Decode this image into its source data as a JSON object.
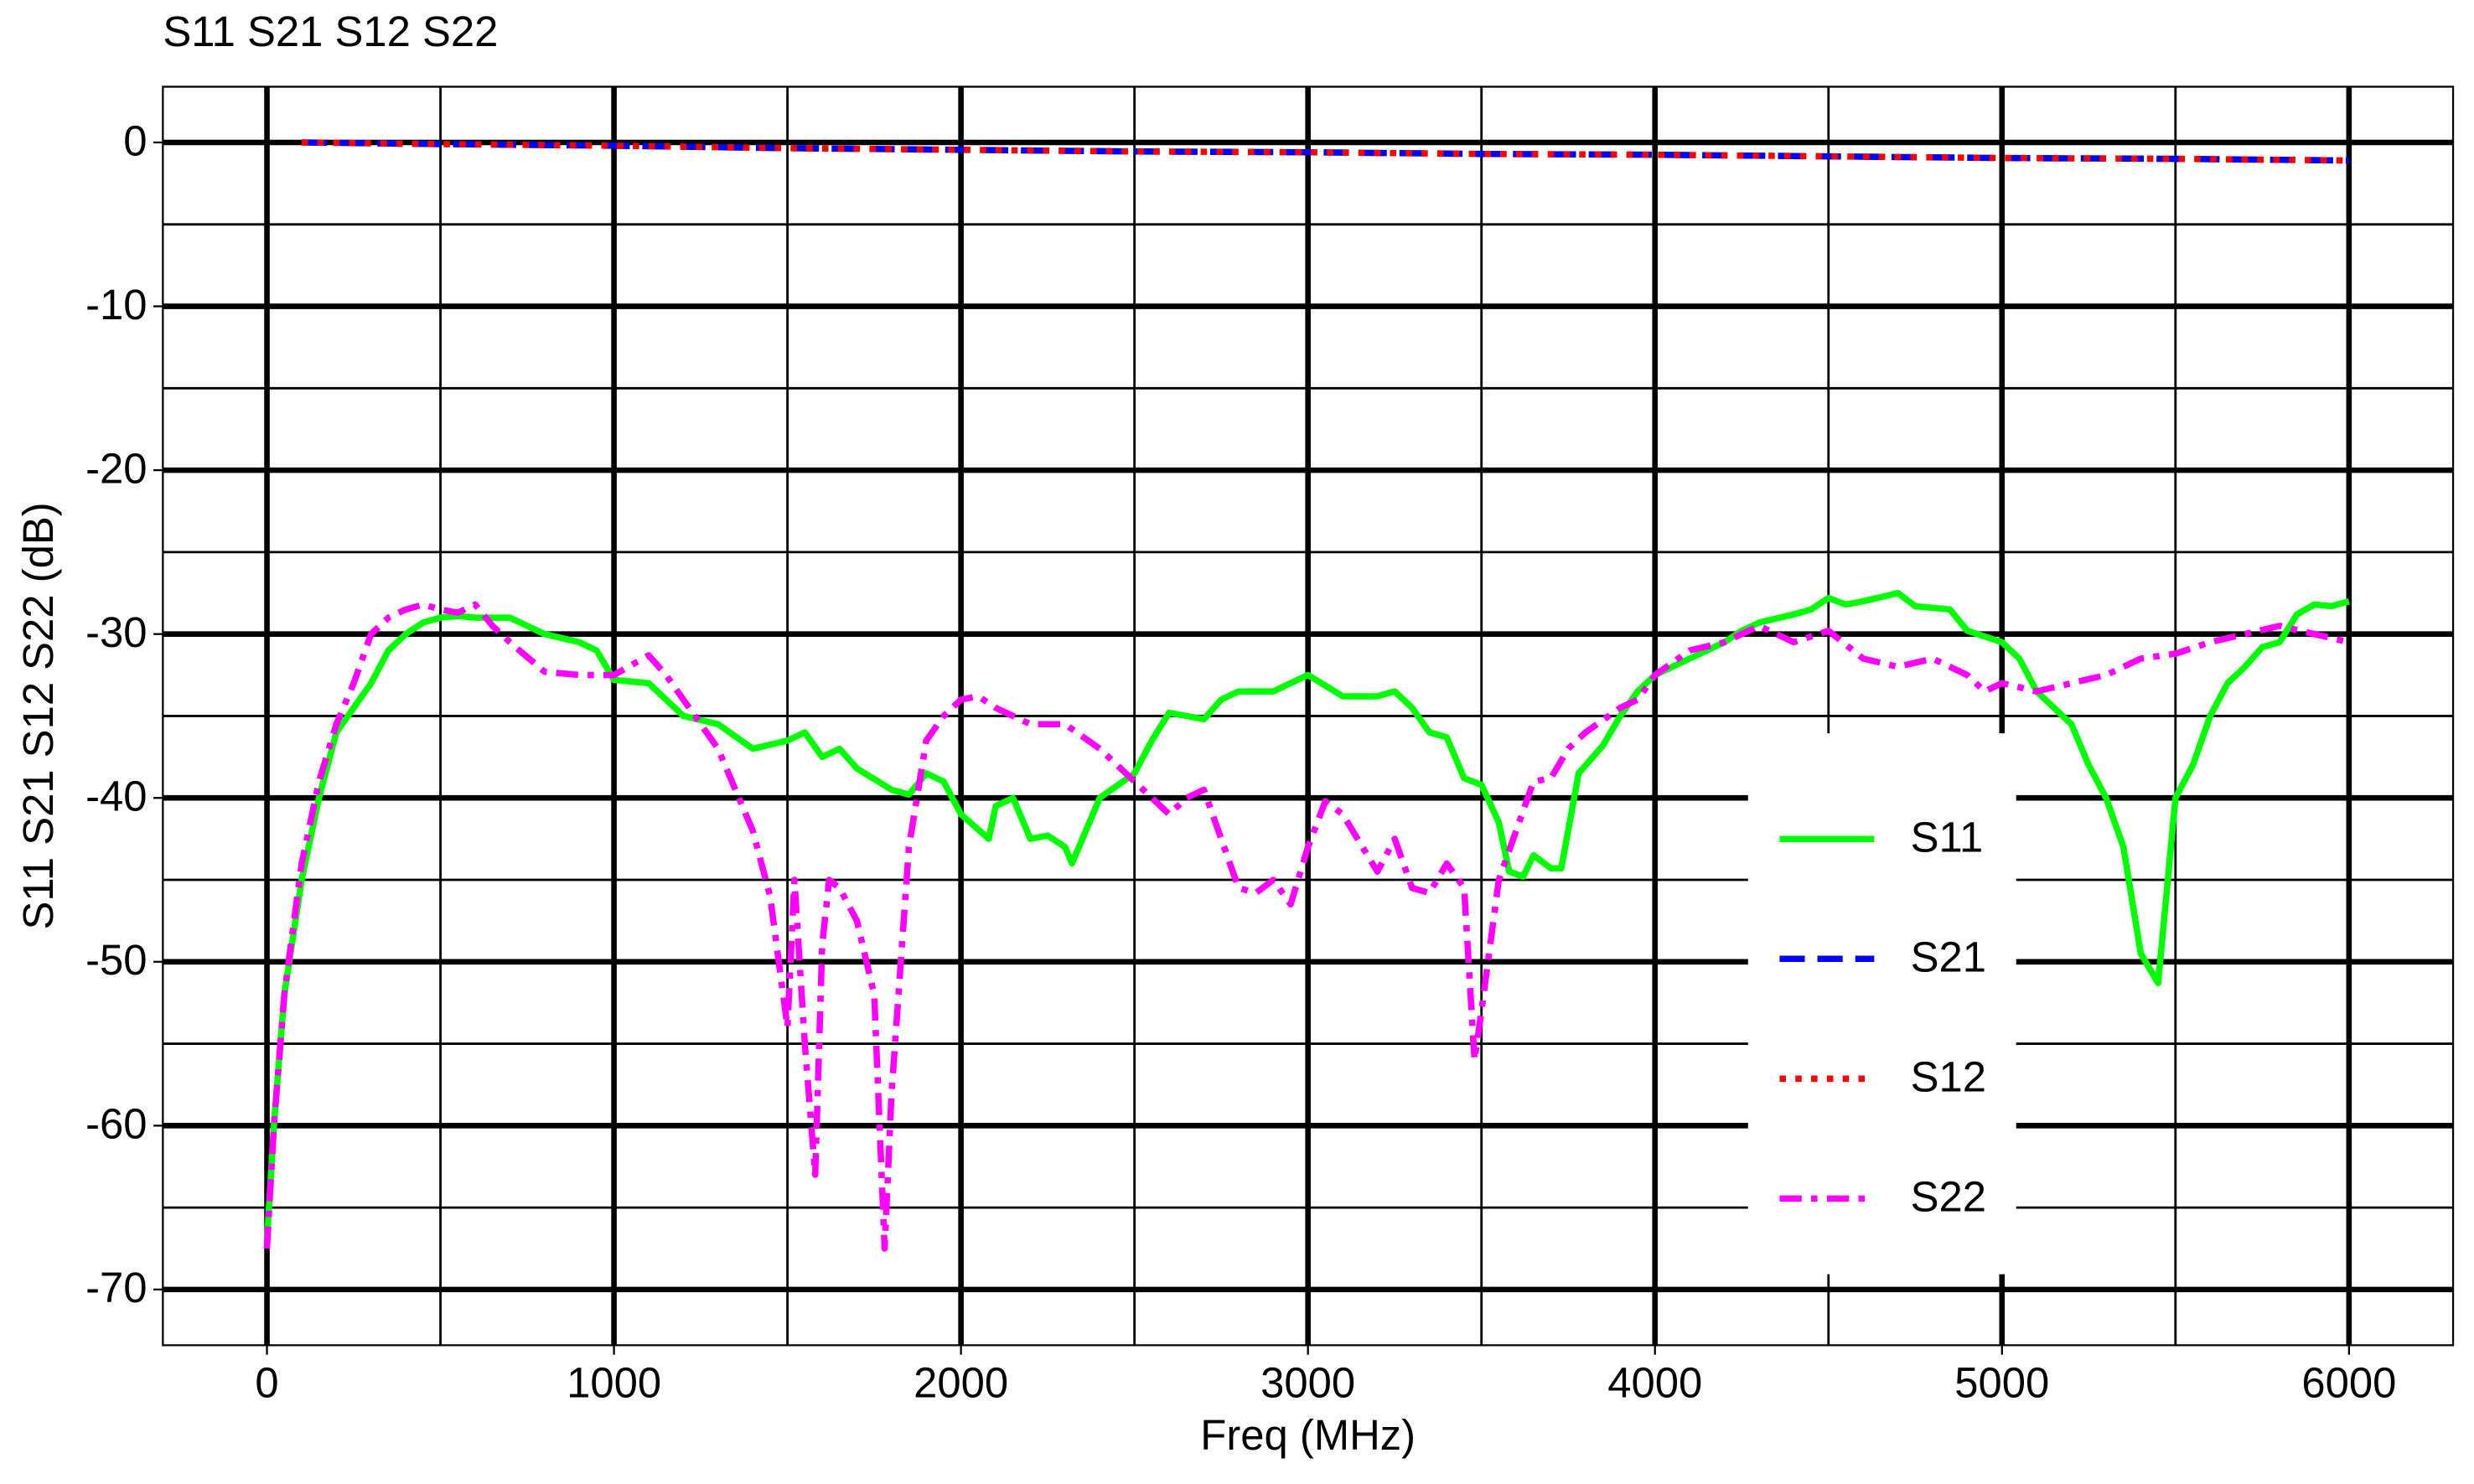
{
  "chart_data": {
    "type": "line",
    "title": "S11 S21 S12 S22",
    "x_label": "Freq (MHz)",
    "y_label": "S11 S21 S12 S22  (dB)",
    "xlim": [
      -300,
      6300
    ],
    "ylim": [
      -73.4,
      3.4
    ],
    "xticks": [
      0,
      1000,
      2000,
      3000,
      4000,
      5000,
      6000
    ],
    "yticks": [
      0,
      -10,
      -20,
      -30,
      -40,
      -50,
      -60,
      -70
    ],
    "x_minor_ticks": [
      500,
      1500,
      2500,
      3500,
      4500,
      5500
    ],
    "y_minor_ticks": [
      -5,
      -15,
      -25,
      -35,
      -45,
      -55,
      -65
    ],
    "grid": true,
    "legend": "lower right",
    "series": [
      {
        "name": "S11",
        "color": "#00ff00",
        "dash": "solid",
        "x": [
          0,
          20,
          50,
          100,
          150,
          200,
          250,
          300,
          350,
          400,
          450,
          500,
          550,
          600,
          700,
          800,
          900,
          950,
          1000,
          1100,
          1200,
          1300,
          1400,
          1500,
          1550,
          1600,
          1650,
          1700,
          1800,
          1850,
          1900,
          1950,
          2000,
          2080,
          2100,
          2150,
          2200,
          2250,
          2300,
          2320,
          2400,
          2500,
          2550,
          2600,
          2700,
          2750,
          2800,
          2900,
          3000,
          3100,
          3200,
          3250,
          3300,
          3350,
          3400,
          3450,
          3500,
          3550,
          3580,
          3620,
          3650,
          3700,
          3730,
          3780,
          3850,
          3900,
          3950,
          4000,
          4100,
          4200,
          4250,
          4300,
          4400,
          4450,
          4500,
          4550,
          4600,
          4700,
          4750,
          4850,
          4900,
          5000,
          5050,
          5100,
          5200,
          5250,
          5300,
          5350,
          5400,
          5450,
          5500,
          5550,
          5600,
          5650,
          5700,
          5750,
          5800,
          5850,
          5900,
          5950,
          6000
        ],
        "values": [
          -67,
          -60,
          -52,
          -45,
          -40,
          -36,
          -34.5,
          -33,
          -31,
          -30,
          -29.3,
          -29,
          -28.9,
          -29,
          -29,
          -30,
          -30.5,
          -31,
          -32.8,
          -33,
          -35,
          -35.5,
          -37,
          -36.5,
          -36,
          -37.5,
          -37,
          -38.2,
          -39.5,
          -39.8,
          -38.5,
          -39,
          -41,
          -42.5,
          -40.5,
          -40,
          -42.5,
          -42.3,
          -43,
          -44,
          -40,
          -38.5,
          -36.5,
          -34.8,
          -35.2,
          -34,
          -33.5,
          -33.5,
          -32.5,
          -33.8,
          -33.8,
          -33.5,
          -34.5,
          -36,
          -36.3,
          -38.8,
          -39.2,
          -41.5,
          -44.5,
          -44.8,
          -43.5,
          -44.3,
          -44.3,
          -38.5,
          -36.8,
          -35,
          -33.5,
          -32.5,
          -31.5,
          -30.5,
          -29.8,
          -29.3,
          -28.8,
          -28.5,
          -27.8,
          -28.2,
          -28,
          -27.5,
          -28.3,
          -28.5,
          -29.8,
          -30.5,
          -31.5,
          -33.5,
          -35.5,
          -38,
          -40,
          -43,
          -49.5,
          -51.3,
          -40,
          -38,
          -35,
          -33,
          -32,
          -30.8,
          -30.5,
          -28.8,
          -28.2,
          -28.3,
          -28
        ]
      },
      {
        "name": "S21",
        "color": "#0000ff",
        "dash": "dashed",
        "x": [
          100,
          500,
          1000,
          1500,
          2000,
          2500,
          3000,
          3500,
          4000,
          4500,
          5000,
          5500,
          6000
        ],
        "values": [
          0,
          -0.1,
          -0.2,
          -0.35,
          -0.45,
          -0.55,
          -0.6,
          -0.7,
          -0.75,
          -0.85,
          -0.95,
          -1.0,
          -1.1
        ]
      },
      {
        "name": "S12",
        "color": "#ff0000",
        "dash": "dotted",
        "x": [
          100,
          500,
          1000,
          1500,
          2000,
          2500,
          3000,
          3500,
          4000,
          4500,
          5000,
          5500,
          6000
        ],
        "values": [
          0,
          -0.1,
          -0.2,
          -0.35,
          -0.45,
          -0.55,
          -0.6,
          -0.7,
          -0.75,
          -0.85,
          -0.95,
          -1.0,
          -1.1
        ]
      },
      {
        "name": "S22",
        "color": "#ff00ff",
        "dash": "dashdot",
        "x": [
          0,
          20,
          50,
          100,
          150,
          200,
          250,
          300,
          350,
          400,
          450,
          500,
          550,
          600,
          650,
          700,
          800,
          900,
          1000,
          1100,
          1150,
          1200,
          1300,
          1350,
          1400,
          1450,
          1500,
          1520,
          1550,
          1580,
          1600,
          1620,
          1650,
          1700,
          1750,
          1780,
          1800,
          1850,
          1900,
          1950,
          2000,
          2050,
          2100,
          2200,
          2300,
          2400,
          2450,
          2550,
          2600,
          2650,
          2700,
          2800,
          2850,
          2900,
          2950,
          3000,
          3050,
          3100,
          3200,
          3250,
          3300,
          3350,
          3400,
          3450,
          3480,
          3500,
          3550,
          3600,
          3650,
          3700,
          3750,
          3800,
          3900,
          3950,
          4000,
          4100,
          4200,
          4300,
          4400,
          4500,
          4600,
          4700,
          4800,
          4900,
          4950,
          5000,
          5100,
          5200,
          5300,
          5400,
          5500,
          5600,
          5700,
          5800,
          5900,
          6000
        ],
        "values": [
          -67.5,
          -60,
          -52,
          -44,
          -39,
          -35.5,
          -33,
          -30,
          -29,
          -28.5,
          -28.2,
          -28.5,
          -28.7,
          -28.2,
          -29.5,
          -30.5,
          -32.3,
          -32.5,
          -32.5,
          -31.3,
          -32.5,
          -34,
          -37,
          -39.5,
          -42,
          -46,
          -54,
          -45,
          -55,
          -63,
          -49,
          -45,
          -45.5,
          -47.5,
          -52,
          -67.5,
          -58,
          -43,
          -36.5,
          -35,
          -34,
          -33.8,
          -34.5,
          -35.5,
          -35.5,
          -37,
          -38,
          -40,
          -41,
          -40,
          -39.5,
          -45.5,
          -45.8,
          -45,
          -46.5,
          -43,
          -40.2,
          -41,
          -44.5,
          -42.5,
          -45.5,
          -45.8,
          -44,
          -45.5,
          -56,
          -53,
          -45,
          -42,
          -39,
          -38.8,
          -37,
          -36,
          -34.5,
          -34,
          -32.5,
          -31,
          -30.5,
          -29.5,
          -30.5,
          -29.8,
          -31.5,
          -32,
          -31.5,
          -32.5,
          -33.5,
          -33,
          -33.5,
          -33,
          -32.5,
          -31.5,
          -31.2,
          -30.5,
          -30,
          -29.5,
          -30,
          -30.5
        ]
      }
    ]
  }
}
